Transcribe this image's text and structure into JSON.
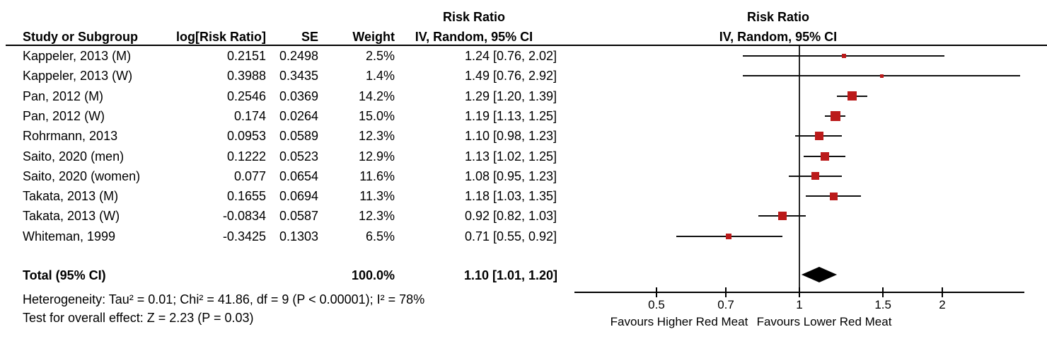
{
  "header": {
    "col_study": "Study or Subgroup",
    "col_log_rr": "log[Risk Ratio]",
    "col_se": "SE",
    "col_weight": "Weight",
    "stats_effect_line1": "Risk Ratio",
    "stats_effect_line2": "IV, Random, 95% CI",
    "plot_effect_line1": "Risk Ratio",
    "plot_effect_line2": "IV, Random, 95% CI"
  },
  "chart_data": {
    "type": "forest",
    "x_scale": "log",
    "effect_measure": "Risk Ratio",
    "model": "IV, Random, 95% CI",
    "axis_ticks": [
      "0.5",
      "0.7",
      "1",
      "1.5",
      "2"
    ],
    "axis_tick_values": [
      0.5,
      0.7,
      1,
      1.5,
      2
    ],
    "axis_range": [
      0.33,
      3.0
    ],
    "axis_labels": {
      "left": "Favours Higher Red Meat",
      "right": "Favours Lower Red Meat"
    },
    "studies": [
      {
        "name": "Kappeler, 2013 (M)",
        "log_rr": "0.2151",
        "se": "0.2498",
        "weight": "2.5%",
        "weight_value": 2.5,
        "rr": 1.24,
        "ci_low": 0.76,
        "ci_high": 2.02,
        "ci_text": "1.24 [0.76, 2.02]"
      },
      {
        "name": "Kappeler, 2013 (W)",
        "log_rr": "0.3988",
        "se": "0.3435",
        "weight": "1.4%",
        "weight_value": 1.4,
        "rr": 1.49,
        "ci_low": 0.76,
        "ci_high": 2.92,
        "ci_text": "1.49 [0.76, 2.92]"
      },
      {
        "name": "Pan, 2012 (M)",
        "log_rr": "0.2546",
        "se": "0.0369",
        "weight": "14.2%",
        "weight_value": 14.2,
        "rr": 1.29,
        "ci_low": 1.2,
        "ci_high": 1.39,
        "ci_text": "1.29 [1.20, 1.39]"
      },
      {
        "name": "Pan, 2012 (W)",
        "log_rr": "0.174",
        "se": "0.0264",
        "weight": "15.0%",
        "weight_value": 15.0,
        "rr": 1.19,
        "ci_low": 1.13,
        "ci_high": 1.25,
        "ci_text": "1.19 [1.13, 1.25]"
      },
      {
        "name": "Rohrmann, 2013",
        "log_rr": "0.0953",
        "se": "0.0589",
        "weight": "12.3%",
        "weight_value": 12.3,
        "rr": 1.1,
        "ci_low": 0.98,
        "ci_high": 1.23,
        "ci_text": "1.10 [0.98, 1.23]"
      },
      {
        "name": "Saito, 2020 (men)",
        "log_rr": "0.1222",
        "se": "0.0523",
        "weight": "12.9%",
        "weight_value": 12.9,
        "rr": 1.13,
        "ci_low": 1.02,
        "ci_high": 1.25,
        "ci_text": "1.13 [1.02, 1.25]"
      },
      {
        "name": "Saito, 2020 (women)",
        "log_rr": "0.077",
        "se": "0.0654",
        "weight": "11.6%",
        "weight_value": 11.6,
        "rr": 1.08,
        "ci_low": 0.95,
        "ci_high": 1.23,
        "ci_text": "1.08 [0.95, 1.23]"
      },
      {
        "name": "Takata, 2013 (M)",
        "log_rr": "0.1655",
        "se": "0.0694",
        "weight": "11.3%",
        "weight_value": 11.3,
        "rr": 1.18,
        "ci_low": 1.03,
        "ci_high": 1.35,
        "ci_text": "1.18 [1.03, 1.35]"
      },
      {
        "name": "Takata, 2013 (W)",
        "log_rr": "-0.0834",
        "se": "0.0587",
        "weight": "12.3%",
        "weight_value": 12.3,
        "rr": 0.92,
        "ci_low": 0.82,
        "ci_high": 1.03,
        "ci_text": "0.92 [0.82, 1.03]"
      },
      {
        "name": "Whiteman, 1999",
        "log_rr": "-0.3425",
        "se": "0.1303",
        "weight": "6.5%",
        "weight_value": 6.5,
        "rr": 0.71,
        "ci_low": 0.55,
        "ci_high": 0.92,
        "ci_text": "0.71 [0.55, 0.92]"
      }
    ],
    "total": {
      "label": "Total (95% CI)",
      "weight": "100.0%",
      "rr": 1.1,
      "ci_low": 1.01,
      "ci_high": 1.2,
      "ci_text": "1.10 [1.01, 1.20]"
    }
  },
  "footer": {
    "heterogeneity": "Heterogeneity: Tau² = 0.01; Chi² = 41.86, df = 9 (P < 0.00001); I² = 78%",
    "overall_effect": "Test for overall effect: Z = 2.23 (P = 0.03)"
  },
  "colors": {
    "marker": "#bb1a1a",
    "diamond": "#000000",
    "line": "#000000"
  }
}
